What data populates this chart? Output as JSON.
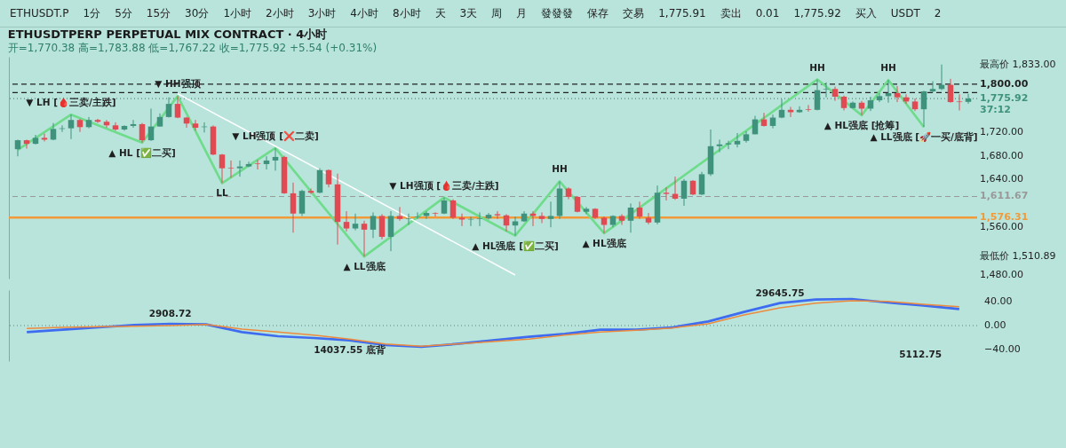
{
  "chart_data": [
    {
      "type": "candlestick",
      "title": "ETHUSDTPERP PERPETUAL MIX CONTRACT · 4小时",
      "subtitle": "开=1,770.38 高=1,783.88 低=1,767.22 收=1,775.92 +5.54 (+0.31%)",
      "categories": [
        null,
        null,
        null,
        null,
        null,
        null,
        null,
        null,
        null,
        null,
        null,
        null,
        null,
        null,
        null,
        null,
        null,
        null,
        null,
        null,
        null,
        null,
        null,
        null,
        null,
        null,
        null,
        null,
        null,
        null,
        null,
        null,
        null,
        null,
        null,
        null,
        null,
        null,
        null,
        null,
        null,
        null,
        null,
        null,
        null,
        null,
        null,
        null,
        null,
        null,
        null,
        null,
        null,
        null,
        null,
        null,
        null,
        null,
        null,
        null,
        null,
        null,
        null,
        null,
        null,
        null,
        null,
        null,
        null,
        null,
        null,
        null,
        null,
        null,
        null,
        null,
        null,
        null,
        null,
        null,
        null,
        null,
        null,
        null,
        null,
        null,
        null,
        null,
        null,
        null,
        null,
        null,
        null,
        null,
        null,
        null,
        null,
        null,
        null,
        null,
        null,
        null,
        null,
        null,
        null,
        null,
        null,
        null
      ],
      "ohlc": [
        [
          1691,
          1707,
          1679,
          1706
        ],
        [
          1706,
          1707,
          1692,
          1700
        ],
        [
          1700,
          1715,
          1699,
          1710
        ],
        [
          1710,
          1717,
          1704,
          1707
        ],
        [
          1707,
          1735,
          1706,
          1725
        ],
        [
          1725,
          1731,
          1720,
          1726
        ],
        [
          1726,
          1749,
          1708,
          1740
        ],
        [
          1740,
          1742,
          1720,
          1728
        ],
        [
          1728,
          1745,
          1726,
          1740
        ],
        [
          1740,
          1742,
          1735,
          1737
        ],
        [
          1737,
          1740,
          1727,
          1731
        ],
        [
          1731,
          1736,
          1722,
          1724
        ],
        [
          1724,
          1731,
          1722,
          1730
        ],
        [
          1730,
          1740,
          1727,
          1733
        ],
        [
          1733,
          1735,
          1702,
          1706
        ],
        [
          1706,
          1759,
          1705,
          1729
        ],
        [
          1729,
          1751,
          1729,
          1745
        ],
        [
          1745,
          1778,
          1744,
          1767
        ],
        [
          1767,
          1780,
          1743,
          1744
        ],
        [
          1744,
          1745,
          1727,
          1734
        ],
        [
          1734,
          1740,
          1722,
          1727
        ],
        [
          1728,
          1736,
          1719,
          1729
        ],
        [
          1729,
          1731,
          1681,
          1682
        ],
        [
          1682,
          1683,
          1634,
          1659
        ],
        [
          1660,
          1672,
          1643,
          1659
        ],
        [
          1659,
          1672,
          1645,
          1662
        ],
        [
          1662,
          1670,
          1661,
          1666
        ],
        [
          1667,
          1673,
          1657,
          1666
        ],
        [
          1666,
          1679,
          1657,
          1672
        ],
        [
          1672,
          1693,
          1655,
          1678
        ],
        [
          1678,
          1680,
          1616,
          1617
        ],
        [
          1617,
          1635,
          1551,
          1583
        ],
        [
          1583,
          1623,
          1579,
          1621
        ],
        [
          1621,
          1625,
          1616,
          1618
        ],
        [
          1618,
          1659,
          1617,
          1656
        ],
        [
          1656,
          1657,
          1627,
          1632
        ],
        [
          1632,
          1650,
          1531,
          1569
        ],
        [
          1569,
          1587,
          1553,
          1558
        ],
        [
          1558,
          1583,
          1555,
          1566
        ],
        [
          1566,
          1571,
          1510.89,
          1556
        ],
        [
          1556,
          1585,
          1542,
          1579
        ],
        [
          1579,
          1582,
          1540,
          1544
        ],
        [
          1544,
          1587,
          1520,
          1579
        ],
        [
          1579,
          1594,
          1571,
          1574
        ],
        [
          1574,
          1583,
          1564,
          1575
        ],
        [
          1577,
          1585,
          1574,
          1578
        ],
        [
          1579,
          1587,
          1574,
          1584
        ],
        [
          1584,
          1585,
          1578,
          1583
        ],
        [
          1583,
          1610,
          1582,
          1605
        ],
        [
          1605,
          1607,
          1574,
          1576
        ],
        [
          1576,
          1583,
          1562,
          1573
        ],
        [
          1573,
          1578,
          1562,
          1574
        ],
        [
          1574,
          1585,
          1562,
          1575
        ],
        [
          1575,
          1584,
          1573,
          1581
        ],
        [
          1582,
          1587,
          1574,
          1580
        ],
        [
          1580,
          1582,
          1553,
          1563
        ],
        [
          1563,
          1578,
          1546,
          1570
        ],
        [
          1570,
          1587,
          1569,
          1583
        ],
        [
          1583,
          1587,
          1562,
          1579
        ],
        [
          1579,
          1585,
          1567,
          1574
        ],
        [
          1574,
          1603,
          1560,
          1579
        ],
        [
          1579,
          1637,
          1574,
          1625
        ],
        [
          1625,
          1627,
          1607,
          1611
        ],
        [
          1611,
          1612,
          1585,
          1586
        ],
        [
          1586,
          1594,
          1582,
          1591
        ],
        [
          1591,
          1592,
          1574,
          1576
        ],
        [
          1576,
          1578,
          1550,
          1564
        ],
        [
          1564,
          1580,
          1560,
          1579
        ],
        [
          1579,
          1582,
          1564,
          1571
        ],
        [
          1571,
          1600,
          1551,
          1593
        ],
        [
          1593,
          1603,
          1574,
          1578
        ],
        [
          1576,
          1584,
          1565,
          1568
        ],
        [
          1568,
          1630,
          1565,
          1618
        ],
        [
          1618,
          1627,
          1605,
          1616
        ],
        [
          1616,
          1645,
          1606,
          1608
        ],
        [
          1608,
          1641,
          1596,
          1638
        ],
        [
          1638,
          1639,
          1614,
          1615
        ],
        [
          1615,
          1653,
          1614,
          1649
        ],
        [
          1649,
          1724,
          1646,
          1696
        ],
        [
          1696,
          1707,
          1686,
          1699
        ],
        [
          1699,
          1705,
          1691,
          1701
        ],
        [
          1699,
          1718,
          1694,
          1705
        ],
        [
          1705,
          1721,
          1702,
          1716
        ],
        [
          1716,
          1747,
          1716,
          1741
        ],
        [
          1741,
          1752,
          1729,
          1730
        ],
        [
          1730,
          1749,
          1726,
          1744
        ],
        [
          1744,
          1775,
          1743,
          1757
        ],
        [
          1757,
          1762,
          1745,
          1753
        ],
        [
          1753,
          1763,
          1752,
          1757
        ],
        [
          1758,
          1765,
          1754,
          1757
        ],
        [
          1757,
          1808,
          1756,
          1790
        ],
        [
          1791,
          1803,
          1778,
          1792
        ],
        [
          1792,
          1796,
          1772,
          1779
        ],
        [
          1779,
          1781,
          1756,
          1760
        ],
        [
          1760,
          1771,
          1759,
          1769
        ],
        [
          1769,
          1772,
          1748,
          1759
        ],
        [
          1759,
          1779,
          1755,
          1773
        ],
        [
          1773,
          1785,
          1770,
          1780
        ],
        [
          1780,
          1807,
          1769,
          1785
        ],
        [
          1785,
          1797,
          1770,
          1778
        ],
        [
          1778,
          1783,
          1767,
          1771
        ],
        [
          1771,
          1776,
          1755,
          1758
        ],
        [
          1758,
          1789,
          1728,
          1788
        ],
        [
          1788,
          1805,
          1786,
          1792
        ],
        [
          1792,
          1833,
          1790,
          1799
        ],
        [
          1799,
          1809,
          1769,
          1770
        ],
        [
          1771,
          1783,
          1756,
          1770
        ],
        [
          1770.38,
          1783.88,
          1767.22,
          1775.92
        ]
      ],
      "series": [
        {
          "type": "line",
          "color": "#6fdc8c",
          "values": [
            1690,
            null,
            null,
            null,
            null,
            null,
            1749,
            null,
            null,
            null,
            null,
            null,
            null,
            null,
            1702,
            null,
            null,
            null,
            1780,
            null,
            null,
            null,
            null,
            1634,
            null,
            null,
            null,
            null,
            null,
            1693,
            null,
            null,
            null,
            null,
            null,
            null,
            null,
            null,
            null,
            1510.89,
            null,
            null,
            null,
            null,
            null,
            null,
            null,
            null,
            1610,
            null,
            null,
            null,
            null,
            null,
            null,
            null,
            1546,
            null,
            null,
            null,
            null,
            1637,
            null,
            null,
            null,
            null,
            1550,
            null,
            null,
            null,
            null,
            null,
            null,
            null,
            null,
            null,
            null,
            null,
            null,
            null,
            null,
            null,
            null,
            null,
            null,
            null,
            null,
            null,
            null,
            null,
            1808,
            null,
            null,
            null,
            null,
            1748,
            null,
            null,
            1807,
            null,
            null,
            null,
            1728,
            null,
            null,
            null,
            null,
            null
          ]
        },
        {
          "type": "line",
          "color": "#ffffff",
          "values": [
            null,
            null,
            null,
            null,
            null,
            null,
            null,
            null,
            null,
            null,
            null,
            null,
            null,
            null,
            null,
            null,
            null,
            null,
            1784,
            null,
            null,
            null,
            null,
            null,
            null,
            null,
            null,
            null,
            null,
            null,
            null,
            null,
            null,
            null,
            null,
            null,
            null,
            null,
            null,
            null,
            null,
            null,
            null,
            null,
            null,
            null,
            null,
            null,
            null,
            null,
            null,
            null,
            null,
            null,
            null,
            null,
            1480,
            null,
            null,
            null,
            null,
            null,
            null,
            null,
            null,
            null,
            null,
            null,
            null,
            null,
            null,
            null,
            null,
            null,
            null,
            null,
            null,
            null,
            null,
            null,
            null,
            null,
            null,
            null,
            null,
            null,
            null,
            null,
            null,
            null,
            null,
            null,
            null,
            null,
            null,
            null,
            null,
            null,
            null,
            null,
            null,
            null,
            null,
            null,
            null,
            null,
            null,
            null
          ]
        }
      ],
      "ylim": [
        1474,
        1846
      ],
      "yticks": [
        {
          "value": 1480,
          "label": "1,480.00"
        },
        {
          "value": 1510.89,
          "label": "最低价 1,510.89"
        },
        {
          "value": 1560,
          "label": "1,560.00"
        },
        {
          "value": 1640,
          "label": "1,640.00"
        },
        {
          "value": 1680,
          "label": "1,680.00"
        },
        {
          "value": 1720,
          "label": "1,720.00"
        },
        {
          "value": 1833,
          "label": "最高价 1,833.00"
        }
      ],
      "tick_labels": "y",
      "ref_lines": [
        {
          "axis": "y",
          "value": 1800,
          "label": "1,800.00",
          "color": "#222222",
          "line_style": "dashed"
        },
        {
          "axis": "y",
          "value": 1786,
          "label": null,
          "color": "#222222",
          "line_style": "dashed"
        },
        {
          "axis": "y",
          "value": 1775.92,
          "label": "1,775.92\n37:12",
          "color": "#3f937c",
          "line_style": "dotted"
        },
        {
          "axis": "y",
          "value": 1611.67,
          "label": "1,611.67",
          "color": "#999999",
          "line_style": "dashed"
        },
        {
          "axis": "y",
          "value": 1576.31,
          "label": "1,576.31",
          "color": "#f29a38",
          "line_style": "solid"
        }
      ],
      "annotations": [
        "ETHUSDT.P",
        "1分",
        "5分",
        "15分",
        "30分",
        "1小时",
        "2小时",
        "3小时",
        "4小时",
        "8小时",
        "天",
        "3天",
        "周",
        "月",
        "發發發",
        "保存",
        "交易",
        "1,775.91",
        "卖出",
        "0.01",
        "1,775.92",
        "买入",
        "USDT",
        "2",
        {
          "text": "▼ LH [🩸三卖/主跌]",
          "y": 1749
        },
        {
          "text": "▲ HL [✅二买]",
          "y": 1702
        },
        {
          "text": "▼ HH强顶",
          "y": 1780
        },
        {
          "text": "LL",
          "y": 1634
        },
        {
          "text": "▼ LH强顶 [❌二卖]",
          "y": 1693
        },
        {
          "text": "▲ LL强底",
          "y": 1510.89
        },
        {
          "text": "▼ LH强顶 [🩸三卖/主跌]",
          "y": 1610
        },
        {
          "text": "▲ HL强底 [✅二买]",
          "y": 1546
        },
        {
          "text": "HH",
          "y": 1637
        },
        {
          "text": "▲ HL强底",
          "y": 1550
        },
        {
          "text": "HH",
          "y": 1808
        },
        {
          "text": "▲ HL强底 [抢筹]",
          "y": 1748
        },
        {
          "text": "HH",
          "y": 1807
        },
        {
          "text": "▲ LL强底 [🚀一买/底背]",
          "y": 1728
        }
      ]
    },
    {
      "type": "line",
      "categories": [
        null,
        null,
        null,
        null,
        null,
        null,
        null,
        null,
        null,
        null,
        null,
        null,
        null,
        null,
        null,
        null,
        null,
        null,
        null,
        null,
        null,
        null,
        null,
        null,
        null,
        null,
        null
      ],
      "ylim": [
        -60,
        60
      ],
      "yticks": [
        {
          "value": 40,
          "label": "40.00"
        },
        {
          "value": 0,
          "label": "0.00"
        },
        {
          "value": -40,
          "label": "−40.00"
        }
      ],
      "tick_labels": "y",
      "series": [
        {
          "color": "#3d6cf0",
          "values": [
            -11,
            -7,
            -3,
            1,
            3,
            2,
            -11,
            -18,
            -21,
            -25,
            -33,
            -36,
            -31,
            -25,
            -19,
            -14,
            -7,
            -7,
            -3,
            7,
            23,
            38,
            44,
            45,
            39,
            34,
            28
          ]
        },
        {
          "color": "#ee8a3c",
          "values": [
            -5,
            -3,
            -2,
            -1,
            0,
            2,
            -6,
            -11,
            -16,
            -23,
            -31,
            -35,
            -31,
            -27,
            -23,
            -16,
            -11,
            -8,
            -4,
            3,
            18,
            30,
            38,
            42,
            41,
            36,
            32
          ]
        }
      ],
      "ref_lines": [
        {
          "axis": "y",
          "value": 0,
          "label": null,
          "color": "#777777",
          "line_style": "dotted"
        }
      ],
      "annotations": [
        {
          "text": "2908.72",
          "y": 3
        },
        {
          "text": "14037.55 底背",
          "y": -25
        },
        {
          "text": "29645.75",
          "y": 38
        },
        "5112.75"
      ]
    }
  ]
}
